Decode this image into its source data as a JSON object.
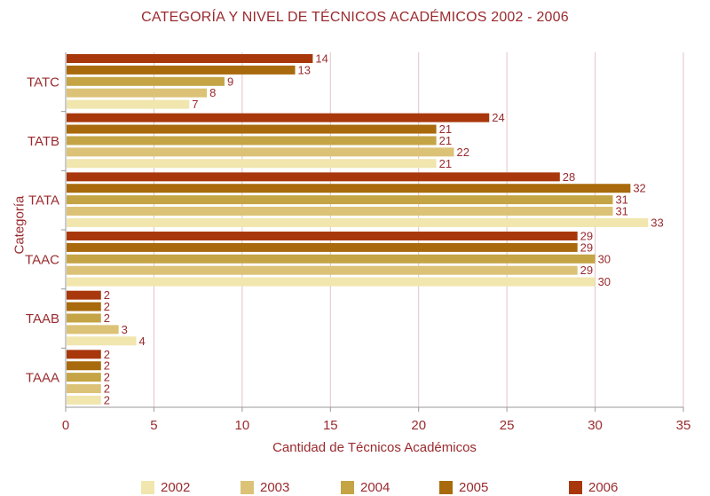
{
  "chart_data": {
    "type": "bar",
    "orientation": "horizontal",
    "title": "CATEGORÍA Y NIVEL DE TÉCNICOS ACADÉMICOS 2002 - 2006",
    "xlabel": "Cantidad de Técnicos Académicos",
    "ylabel": "Categoría",
    "xlim": [
      0,
      35
    ],
    "xticks": [
      0,
      5,
      10,
      15,
      20,
      25,
      30,
      35
    ],
    "grid": true,
    "legend_position": "bottom",
    "categories": [
      "TATC",
      "TATB",
      "TATA",
      "TAAC",
      "TAAB",
      "TAAA"
    ],
    "series": [
      {
        "name": "2006",
        "color": "#a8380c",
        "values": [
          14,
          24,
          28,
          29,
          2,
          2
        ]
      },
      {
        "name": "2005",
        "color": "#a86a0c",
        "values": [
          13,
          21,
          32,
          29,
          2,
          2
        ]
      },
      {
        "name": "2004",
        "color": "#c4a445",
        "values": [
          9,
          21,
          31,
          30,
          2,
          2
        ]
      },
      {
        "name": "2003",
        "color": "#dcc276",
        "values": [
          8,
          22,
          31,
          29,
          3,
          2
        ]
      },
      {
        "name": "2002",
        "color": "#f0e6ae",
        "values": [
          7,
          21,
          33,
          30,
          4,
          2
        ]
      }
    ],
    "legend_order": [
      "2002",
      "2003",
      "2004",
      "2005",
      "2006"
    ],
    "label_color": "#9a2a2e",
    "grid_color": "#e3c3c6"
  }
}
